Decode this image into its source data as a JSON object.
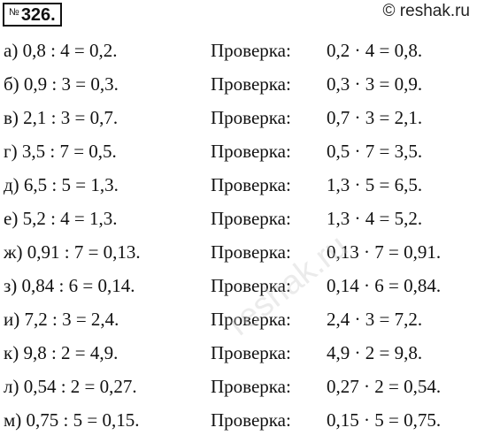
{
  "header": {
    "number_prefix": "№",
    "number": "326.",
    "site": "© reshak.ru"
  },
  "rows": [
    {
      "label": "а) 0,8 : 4 = 0,2.",
      "check_word": "Проверка:",
      "check": "0,2 · 4 = 0,8."
    },
    {
      "label": "б) 0,9 : 3 = 0,3.",
      "check_word": "Проверка:",
      "check": "0,3 · 3 = 0,9."
    },
    {
      "label": "в) 2,1 : 3 = 0,7.",
      "check_word": "Проверка:",
      "check": "0,7 · 3 = 2,1."
    },
    {
      "label": "г) 3,5 : 7 = 0,5.",
      "check_word": "Проверка:",
      "check": "0,5 · 7 = 3,5."
    },
    {
      "label": "д) 6,5 : 5 = 1,3.",
      "check_word": "Проверка:",
      "check": "1,3 · 5 = 6,5."
    },
    {
      "label": "е) 5,2 : 4 = 1,3.",
      "check_word": "Проверка:",
      "check": "1,3 · 4 = 5,2."
    },
    {
      "label": "ж) 0,91 : 7 = 0,13.",
      "check_word": "Проверка:",
      "check": "0,13 · 7 = 0,91."
    },
    {
      "label": "з) 0,84 : 6 = 0,14.",
      "check_word": "Проверка:",
      "check": "0,14 · 6 = 0,84."
    },
    {
      "label": "и) 7,2 : 3 = 2,4.",
      "check_word": "Проверка:",
      "check": "2,4 · 3 = 7,2."
    },
    {
      "label": "к) 9,8 : 2 = 4,9.",
      "check_word": "Проверка:",
      "check": "4,9 · 2 = 9,8."
    },
    {
      "label": "л) 0,54 : 2 = 0,27.",
      "check_word": "Проверка:",
      "check": "0,27 · 2 = 0,54."
    },
    {
      "label": "м) 0,75 : 5 = 0,15.",
      "check_word": "Проверка:",
      "check": "0,15 · 5 = 0,75."
    }
  ],
  "watermark": "reshak.ru"
}
